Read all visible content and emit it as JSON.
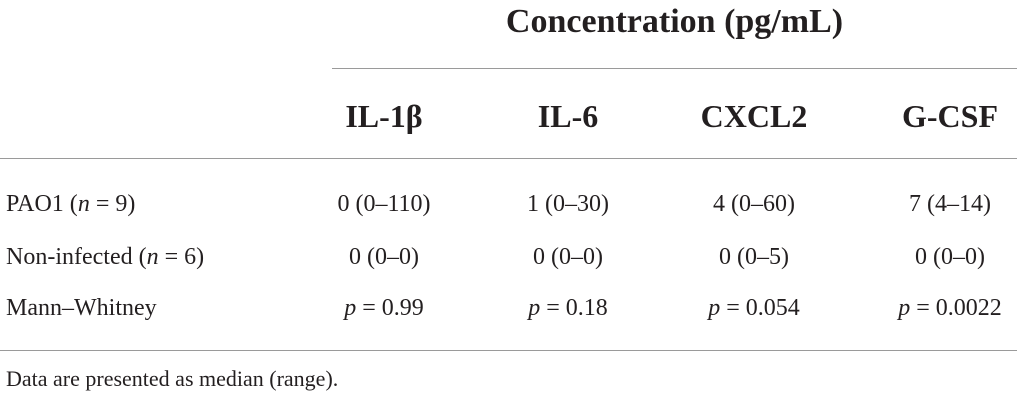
{
  "title": "Concentration (pg/mL)",
  "columns": [
    "IL-1β",
    "IL-6",
    "CXCL2",
    "G-CSF"
  ],
  "rows": [
    {
      "label_prefix": "PAO1 (",
      "label_n": "n",
      "label_suffix": " = 9)",
      "values": [
        "0 (0–110)",
        "1 (0–30)",
        "4 (0–60)",
        "7 (4–14)"
      ]
    },
    {
      "label_prefix": "Non-infected (",
      "label_n": "n",
      "label_suffix": " = 6)",
      "values": [
        "0 (0–0)",
        "0 (0–0)",
        "0 (0–5)",
        "0 (0–0)"
      ]
    }
  ],
  "test_row": {
    "label": "Mann–Whitney",
    "p_symbol": "p",
    "values": [
      " = 0.99",
      " = 0.18",
      " = 0.054",
      " = 0.0022"
    ]
  },
  "footnote": "Data are presented as median (range)."
}
